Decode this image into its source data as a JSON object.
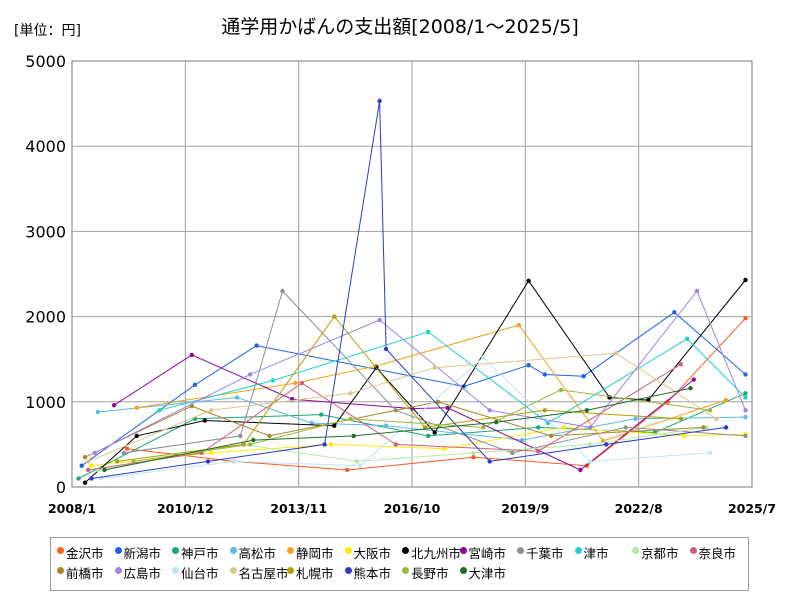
{
  "unit_label": "[単位：円]",
  "chart_data": {
    "type": "line",
    "title": "通学用かばんの支出額[2008/1～2025/5]",
    "xlabel": "",
    "ylabel": "円",
    "ylim": [
      0,
      5000
    ],
    "y_ticks": [
      0,
      1000,
      2000,
      3000,
      4000,
      5000
    ],
    "x_ticks": [
      "2008/1",
      "2010/12",
      "2013/11",
      "2016/10",
      "2019/9",
      "2022/8",
      "2025/7"
    ],
    "grid": true,
    "legend_position": "bottom",
    "series": [
      {
        "name": "金沢市",
        "color": "#ff5a1f",
        "points": [
          [
            "2009/6",
            450
          ],
          [
            "2012/3",
            300
          ],
          [
            "2015/2",
            200
          ],
          [
            "2018/5",
            350
          ],
          [
            "2021/4",
            250
          ],
          [
            "2023/5",
            1000
          ],
          [
            "2025/5",
            1980
          ]
        ]
      },
      {
        "name": "新潟市",
        "color": "#1f63e6",
        "points": [
          [
            "2008/4",
            250
          ],
          [
            "2011/3",
            1200
          ],
          [
            "2012/10",
            1660
          ],
          [
            "2018/2",
            1180
          ],
          [
            "2019/10",
            1430
          ],
          [
            "2020/3",
            1320
          ],
          [
            "2021/3",
            1300
          ],
          [
            "2023/7",
            2050
          ],
          [
            "2025/5",
            1320
          ]
        ]
      },
      {
        "name": "神戸市",
        "color": "#1aa874",
        "points": [
          [
            "2008/3",
            100
          ],
          [
            "2011/3",
            800
          ],
          [
            "2014/6",
            850
          ],
          [
            "2017/3",
            600
          ],
          [
            "2020/1",
            700
          ],
          [
            "2023/1",
            640
          ],
          [
            "2025/5",
            1100
          ]
        ]
      },
      {
        "name": "高松市",
        "color": "#5eb8e8",
        "points": [
          [
            "2008/9",
            880
          ],
          [
            "2012/4",
            1050
          ],
          [
            "2014/3",
            750
          ],
          [
            "2016/2",
            720
          ],
          [
            "2019/8",
            550
          ],
          [
            "2022/7",
            800
          ],
          [
            "2025/5",
            820
          ]
        ]
      },
      {
        "name": "静岡市",
        "color": "#f5a21c",
        "points": [
          [
            "2009/9",
            930
          ],
          [
            "2013/10",
            1220
          ],
          [
            "2015/11",
            1420
          ],
          [
            "2019/7",
            1900
          ],
          [
            "2021/9",
            540
          ],
          [
            "2024/11",
            1020
          ]
        ]
      },
      {
        "name": "大阪市",
        "color": "#ffeb0a",
        "points": [
          [
            "2008/7",
            250
          ],
          [
            "2011/8",
            400
          ],
          [
            "2014/9",
            500
          ],
          [
            "2017/8",
            450
          ],
          [
            "2020/9",
            700
          ],
          [
            "2023/10",
            600
          ],
          [
            "2025/5",
            620
          ]
        ]
      },
      {
        "name": "北九州市",
        "color": "#000000",
        "points": [
          [
            "2008/5",
            50
          ],
          [
            "2009/9",
            600
          ],
          [
            "2011/6",
            780
          ],
          [
            "2014/10",
            720
          ],
          [
            "2015/11",
            1400
          ],
          [
            "2017/5",
            640
          ],
          [
            "2019/10",
            2420
          ],
          [
            "2021/11",
            1050
          ],
          [
            "2022/11",
            1020
          ],
          [
            "2025/5",
            2430
          ]
        ]
      },
      {
        "name": "宮崎市",
        "color": "#8b0a9a",
        "points": [
          [
            "2009/2",
            960
          ],
          [
            "2011/2",
            1550
          ],
          [
            "2013/9",
            1030
          ],
          [
            "2016/10",
            920
          ],
          [
            "2017/9",
            930
          ],
          [
            "2021/2",
            200
          ],
          [
            "2024/1",
            1260
          ]
        ]
      },
      {
        "name": "千葉市",
        "color": "#8c8f96",
        "points": [
          [
            "2009/5",
            400
          ],
          [
            "2012/5",
            600
          ],
          [
            "2013/6",
            2300
          ],
          [
            "2016/5",
            900
          ],
          [
            "2019/5",
            400
          ],
          [
            "2022/4",
            700
          ],
          [
            "2025/5",
            600
          ]
        ]
      },
      {
        "name": "津市",
        "color": "#1fd0d0",
        "points": [
          [
            "2010/4",
            900
          ],
          [
            "2013/3",
            1250
          ],
          [
            "2017/3",
            1820
          ],
          [
            "2020/4",
            750
          ],
          [
            "2023/11",
            1740
          ],
          [
            "2025/5",
            1050
          ]
        ]
      },
      {
        "name": "京都市",
        "color": "#b3e8a5",
        "points": [
          [
            "2008/9",
            200
          ],
          [
            "2012/6",
            500
          ],
          [
            "2015/5",
            300
          ],
          [
            "2018/5",
            400
          ],
          [
            "2021/5",
            500
          ],
          [
            "2024/5",
            700
          ]
        ]
      },
      {
        "name": "奈良市",
        "color": "#d45e7a",
        "points": [
          [
            "2008/6",
            200
          ],
          [
            "2011/5",
            400
          ],
          [
            "2013/12",
            1220
          ],
          [
            "2016/5",
            500
          ],
          [
            "2020/1",
            420
          ],
          [
            "2023/9",
            1440
          ]
        ]
      },
      {
        "name": "前橋市",
        "color": "#a68a2a",
        "points": [
          [
            "2008/5",
            350
          ],
          [
            "2011/2",
            950
          ],
          [
            "2013/2",
            600
          ],
          [
            "2017/6",
            1000
          ],
          [
            "2020/5",
            600
          ],
          [
            "2024/4",
            700
          ]
        ]
      },
      {
        "name": "広島市",
        "color": "#a182e6",
        "points": [
          [
            "2008/8",
            400
          ],
          [
            "2012/8",
            1320
          ],
          [
            "2015/12",
            1960
          ],
          [
            "2018/10",
            900
          ],
          [
            "2021/5",
            700
          ],
          [
            "2024/2",
            2300
          ],
          [
            "2025/5",
            900
          ]
        ]
      },
      {
        "name": "仙台市",
        "color": "#c0e4f0",
        "points": [
          [
            "2008/10",
            100
          ],
          [
            "2012/3",
            300
          ],
          [
            "2015/6",
            250
          ],
          [
            "2018/8",
            1520
          ],
          [
            "2021/5",
            300
          ],
          [
            "2024/6",
            400
          ]
        ]
      },
      {
        "name": "名古屋市",
        "color": "#e0c58a",
        "points": [
          [
            "2008/6",
            300
          ],
          [
            "2011/8",
            900
          ],
          [
            "2015/3",
            1100
          ],
          [
            "2017/5",
            1400
          ],
          [
            "2022/1",
            1570
          ],
          [
            "2024/8",
            800
          ]
        ]
      },
      {
        "name": "札幌市",
        "color": "#b0a000",
        "points": [
          [
            "2009/3",
            300
          ],
          [
            "2012/6",
            500
          ],
          [
            "2014/10",
            2000
          ],
          [
            "2017/2",
            700
          ],
          [
            "2020/3",
            900
          ],
          [
            "2023/9",
            800
          ]
        ]
      },
      {
        "name": "熊本市",
        "color": "#2a3bc4",
        "points": [
          [
            "2008/7",
            100
          ],
          [
            "2011/7",
            300
          ],
          [
            "2014/7",
            500
          ],
          [
            "2015/12",
            4530
          ],
          [
            "2016/2",
            1620
          ],
          [
            "2018/10",
            300
          ],
          [
            "2021/10",
            500
          ],
          [
            "2024/11",
            700
          ]
        ]
      },
      {
        "name": "長野市",
        "color": "#9ab83a",
        "points": [
          [
            "2009/8",
            300
          ],
          [
            "2012/8",
            500
          ],
          [
            "2015/3",
            800
          ],
          [
            "2018/8",
            700
          ],
          [
            "2020/8",
            1140
          ],
          [
            "2024/6",
            900
          ]
        ]
      },
      {
        "name": "大津市",
        "color": "#1e6e2a",
        "points": [
          [
            "2008/11",
            200
          ],
          [
            "2012/9",
            550
          ],
          [
            "2015/4",
            600
          ],
          [
            "2018/12",
            760
          ],
          [
            "2021/4",
            900
          ],
          [
            "2023/12",
            1160
          ]
        ]
      }
    ]
  }
}
